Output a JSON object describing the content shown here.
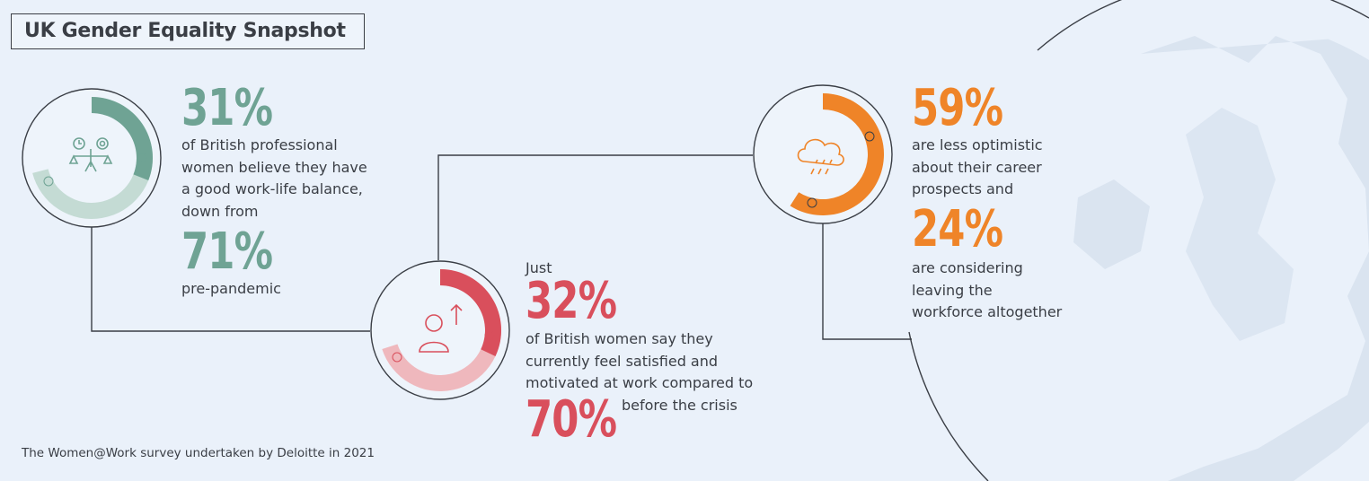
{
  "title": "UK Gender Equality Snapshot",
  "colors": {
    "green": "#6fa394",
    "red": "#d94f5c",
    "orange": "#ef8428",
    "background": "#eaf1fa"
  },
  "stat1": {
    "icon": "work-life-balance-scale-icon",
    "pct_main": "31%",
    "text_main": "of British professional\nwomen believe they have\na good work-life balance,\ndown from",
    "pct_prev": "71%",
    "text_prev": "pre-pandemic",
    "fill_current": 0.31,
    "fill_previous": 0.71
  },
  "stat2": {
    "icon": "person-arrow-up-icon",
    "lead": "Just",
    "pct_main": "32%",
    "text_main": "of British women say they\ncurrently feel satisfied and\nmotivated at work compared to",
    "pct_prev": "70%",
    "text_prev": "before the crisis",
    "fill_current": 0.32,
    "fill_previous": 0.7
  },
  "stat3": {
    "icon": "rain-cloud-icon",
    "pct_main": "59%",
    "text_main": "are less optimistic\nabout their career\nprospects and",
    "pct_second": "24%",
    "text_second": "are considering\nleaving the\nworkforce altogether",
    "fill_current": 0.59,
    "fill_secondary": 0.24
  },
  "source": "The Women@Work survey undertaken by Deloitte in 2021"
}
